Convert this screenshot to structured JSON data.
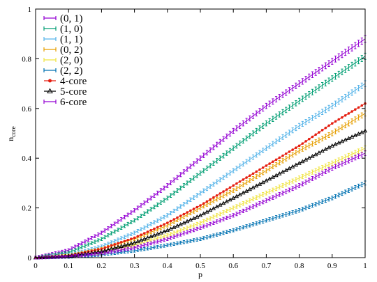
{
  "chart_data": {
    "type": "line",
    "xlabel": "p",
    "ylabel": "n",
    "ylabel_sub": "core",
    "xlim": [
      0,
      1
    ],
    "ylim": [
      0,
      1
    ],
    "x_ticks": [
      0,
      0.1,
      0.2,
      0.3,
      0.4,
      0.5,
      0.6,
      0.7,
      0.8,
      0.9,
      1
    ],
    "x_tick_labels": [
      "0",
      "0.1",
      "0.2",
      "0.3",
      "0.4",
      "0.5",
      "0.6",
      "0.7",
      "0.8",
      "0.9",
      "1"
    ],
    "y_ticks": [
      0,
      0.2,
      0.4,
      0.6,
      0.8,
      1
    ],
    "y_tick_labels": [
      "0",
      "0.2",
      "0.4",
      "0.6",
      "0.8",
      "1"
    ],
    "grid": false,
    "legend_position": "top-left",
    "x": [
      0,
      0.1,
      0.2,
      0.3,
      0.4,
      0.5,
      0.6,
      0.7,
      0.8,
      0.9,
      1
    ],
    "series": [
      {
        "name": "(0, 1)",
        "color": "#9400d3",
        "marker": "errorbar",
        "values": [
          0,
          0.03,
          0.1,
          0.19,
          0.29,
          0.4,
          0.51,
          0.61,
          0.7,
          0.79,
          0.88
        ]
      },
      {
        "name": "(1, 0)",
        "color": "#009e73",
        "marker": "errorbar",
        "values": [
          0,
          0.02,
          0.075,
          0.15,
          0.24,
          0.34,
          0.44,
          0.54,
          0.63,
          0.72,
          0.81
        ]
      },
      {
        "name": "(1, 1)",
        "color": "#56b4e9",
        "marker": "errorbar",
        "values": [
          0,
          0.01,
          0.045,
          0.1,
          0.17,
          0.26,
          0.35,
          0.44,
          0.53,
          0.61,
          0.7
        ]
      },
      {
        "name": "(0, 2)",
        "color": "#e69f00",
        "marker": "errorbar",
        "values": [
          0,
          0.008,
          0.035,
          0.075,
          0.13,
          0.2,
          0.27,
          0.35,
          0.43,
          0.5,
          0.58
        ]
      },
      {
        "name": "(2, 0)",
        "color": "#f0e442",
        "marker": "errorbar",
        "values": [
          0,
          0.005,
          0.02,
          0.05,
          0.09,
          0.14,
          0.2,
          0.26,
          0.32,
          0.38,
          0.44
        ]
      },
      {
        "name": "(2, 2)",
        "color": "#0072b2",
        "marker": "errorbar",
        "values": [
          0,
          0.003,
          0.012,
          0.028,
          0.05,
          0.075,
          0.11,
          0.15,
          0.19,
          0.24,
          0.3
        ]
      },
      {
        "name": "4-core",
        "color": "#e51e10",
        "marker": "circle",
        "values": [
          0,
          0.008,
          0.035,
          0.08,
          0.14,
          0.21,
          0.29,
          0.37,
          0.45,
          0.54,
          0.62
        ]
      },
      {
        "name": "5-core",
        "color": "#000000",
        "marker": "triangle",
        "values": [
          0,
          0.006,
          0.025,
          0.06,
          0.11,
          0.17,
          0.24,
          0.31,
          0.38,
          0.45,
          0.51
        ]
      },
      {
        "name": "6-core",
        "color": "#9400d3",
        "marker": "errorbar",
        "values": [
          0,
          0.004,
          0.017,
          0.04,
          0.075,
          0.12,
          0.17,
          0.23,
          0.29,
          0.36,
          0.42
        ]
      }
    ]
  }
}
